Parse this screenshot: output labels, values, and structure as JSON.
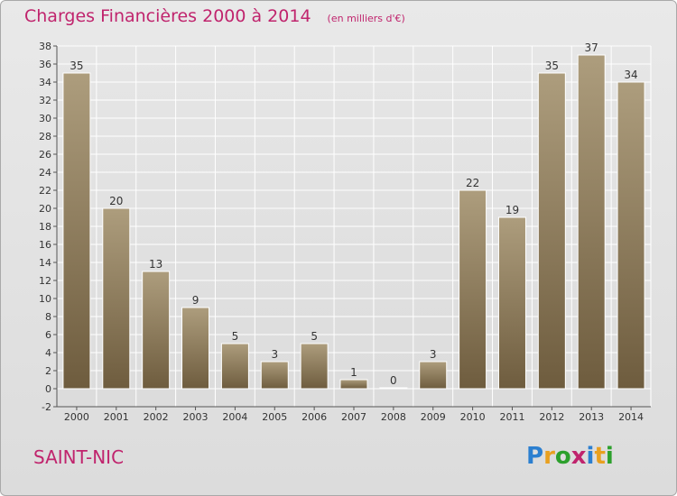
{
  "title": "Charges Financières 2000 à 2014",
  "unit": "(en milliers d'€)",
  "commune": "SAINT-NIC",
  "logo": {
    "letters": [
      "P",
      "r",
      "o",
      "x",
      "i",
      "t",
      "i"
    ],
    "colors": [
      "#2b7fd0",
      "#e8a020",
      "#2ca02c",
      "#c0246d",
      "#2b7fd0",
      "#e8a020",
      "#2ca02c"
    ]
  },
  "colors": {
    "title": "#c0246d",
    "bar_light": "#ad9d7d",
    "bar_dark": "#6e5c3e"
  },
  "chart_data": {
    "type": "bar",
    "categories": [
      "2000",
      "2001",
      "2002",
      "2003",
      "2004",
      "2005",
      "2006",
      "2007",
      "2008",
      "2009",
      "2010",
      "2011",
      "2012",
      "2013",
      "2014"
    ],
    "values": [
      35,
      20,
      13,
      9,
      5,
      3,
      5,
      1,
      0,
      3,
      22,
      19,
      35,
      37,
      34
    ],
    "ylim": [
      -2,
      38
    ],
    "yticks": [
      -2,
      0,
      2,
      4,
      6,
      8,
      10,
      12,
      14,
      16,
      18,
      20,
      22,
      24,
      26,
      28,
      30,
      32,
      34,
      36,
      38
    ],
    "grid": true,
    "data_labels": true
  }
}
